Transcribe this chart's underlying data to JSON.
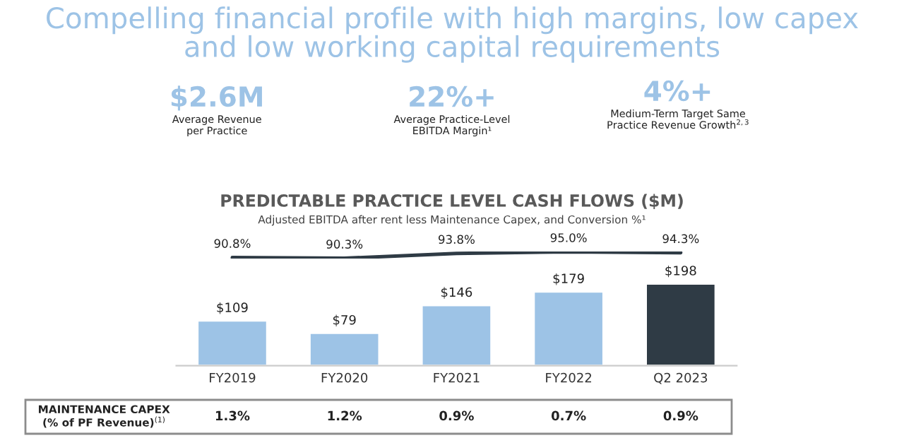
{
  "chart_data": [
    {
      "type": "line",
      "tick_labels": false,
      "title": "Compelling financial profile with high margins, low capex\nand low working capital requirements",
      "subtitle": "PREDICTABLE PRACTICE LEVEL CASH FLOWS ($M)",
      "categories": [
        null,
        null,
        null,
        null,
        null
      ],
      "series": [
        {
          "color": "#2f3b45",
          "values": [
            90.8,
            90.3,
            93.8,
            95.0,
            94.3
          ],
          "value_labels": [
            "90.8%",
            "90.3%",
            "93.8%",
            "95.0%",
            "94.3%"
          ]
        }
      ],
      "annotations": [
        "Adjusted EBITDA after rent less Maintenance Capex, and Conversion %¹",
        "$2.6M",
        "Average Revenue\nper Practice",
        "22%+",
        "Average Practice-Level\nEBITDA Margin¹",
        "4%+",
        "Medium-Term Target Same\nPractice Revenue Growth$^{2,3}$"
      ]
    },
    {
      "type": "bar",
      "tick_labels": "x",
      "categories": [
        "FY2019",
        "FY2020",
        "FY2021",
        "FY2022",
        "Q2 2023"
      ],
      "series": [
        {
          "colors": [
            "#9dc3e6",
            "#9dc3e6",
            "#9dc3e6",
            "#9dc3e6",
            "#2f3b45"
          ],
          "values": [
            109,
            79,
            146,
            179,
            198
          ],
          "value_labels": [
            "$109",
            "$79",
            "$146",
            "$179",
            "$198"
          ]
        }
      ],
      "annotations": [
        "MAINTENANCE CAPEX\n(% of PF Revenue)$^{(1)}$",
        "1.3%",
        "1.2%",
        "0.9%",
        "0.7%",
        "0.9%"
      ]
    }
  ]
}
